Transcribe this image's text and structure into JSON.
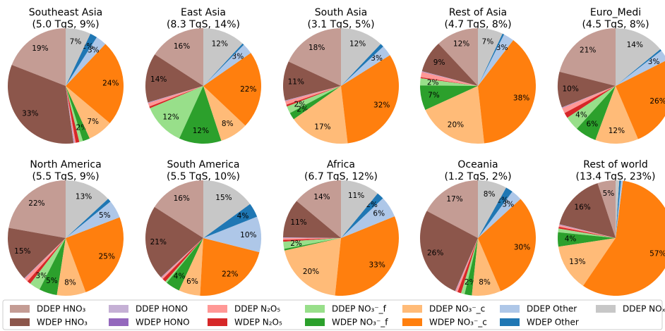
{
  "chart_data": [
    {
      "type": "pie",
      "title": "Southeast Asia",
      "subtitle": "(5.0 TgS, 9%)",
      "values": [
        19,
        33,
        0.2,
        0.1,
        0.3,
        1,
        1,
        2,
        7,
        24,
        3,
        2,
        7
      ],
      "value_labels": [
        "19%",
        "33%",
        null,
        null,
        null,
        null,
        null,
        "2%",
        "7%",
        "24%",
        "3%",
        "2%",
        "7%"
      ]
    },
    {
      "type": "pie",
      "title": "East Asia",
      "subtitle": "(8.3 TgS, 14%)",
      "values": [
        16,
        14,
        0.1,
        0.1,
        1,
        0.5,
        12,
        12,
        8,
        22,
        3,
        0.5,
        12
      ],
      "value_labels": [
        "16%",
        "14%",
        null,
        null,
        null,
        null,
        "12%",
        "12%",
        "8%",
        "22%",
        "3%",
        null,
        "12%"
      ]
    },
    {
      "type": "pie",
      "title": "South Asia",
      "subtitle": "(3.1 TgS, 5%)",
      "values": [
        18,
        11,
        0.1,
        0.1,
        1,
        0.5,
        2,
        2,
        17,
        32,
        3,
        1,
        12
      ],
      "value_labels": [
        "18%",
        "11%",
        null,
        null,
        null,
        null,
        "2%",
        "2%",
        "17%",
        "32%",
        "3%",
        null,
        "12%"
      ]
    },
    {
      "type": "pie",
      "title": "Rest of Asia",
      "subtitle": "(4.7 TgS, 8%)",
      "values": [
        12,
        9,
        0.1,
        0.1,
        1.5,
        0.3,
        2,
        7,
        20,
        38,
        3,
        0.5,
        7
      ],
      "value_labels": [
        "12%",
        "9%",
        null,
        null,
        null,
        null,
        "2%",
        "7%",
        "20%",
        "38%",
        "3%",
        null,
        "7%"
      ]
    },
    {
      "type": "pie",
      "title": "Euro_Medi",
      "subtitle": "(4.5 TgS, 8%)",
      "values": [
        21,
        10,
        0.1,
        0.1,
        1.5,
        1.5,
        4,
        6,
        12,
        26,
        3,
        0.5,
        14
      ],
      "value_labels": [
        "21%",
        "10%",
        null,
        null,
        null,
        null,
        "4%",
        "6%",
        "12%",
        "26%",
        "3%",
        null,
        "14%"
      ]
    },
    {
      "type": "pie",
      "title": "North America",
      "subtitle": "(5.5 TgS, 9%)",
      "values": [
        22,
        15,
        0.1,
        0.1,
        1,
        1,
        3,
        5,
        8,
        25,
        5,
        1,
        13
      ],
      "value_labels": [
        "22%",
        "15%",
        null,
        null,
        null,
        null,
        "3%",
        "5%",
        "8%",
        "25%",
        "5%",
        null,
        "13%"
      ]
    },
    {
      "type": "pie",
      "title": "South America",
      "subtitle": "(5.5 TgS, 10%)",
      "values": [
        16,
        21,
        0.1,
        0.1,
        0.5,
        1,
        0.5,
        4,
        6,
        22,
        10,
        4,
        15
      ],
      "value_labels": [
        "16%",
        "21%",
        null,
        null,
        null,
        null,
        null,
        "4%",
        "6%",
        "22%",
        "10%",
        "4%",
        "15%"
      ]
    },
    {
      "type": "pie",
      "title": "Africa",
      "subtitle": "(6.7 TgS, 12%)",
      "values": [
        14,
        11,
        0.1,
        0.1,
        0.5,
        0.5,
        2,
        0.5,
        20,
        33,
        6,
        2,
        11
      ],
      "value_labels": [
        "14%",
        "11%",
        null,
        null,
        null,
        null,
        "2%",
        null,
        "20%",
        "33%",
        "6%",
        "2%",
        "11%"
      ]
    },
    {
      "type": "pie",
      "title": "Oceania",
      "subtitle": "(1.2 TgS, 2%)",
      "values": [
        17,
        26,
        0.1,
        0.1,
        0.5,
        1,
        1,
        2,
        8,
        30,
        3,
        2,
        8
      ],
      "value_labels": [
        "17%",
        "26%",
        null,
        null,
        null,
        null,
        null,
        "2%",
        "8%",
        "30%",
        "3%",
        "2%",
        "8%"
      ]
    },
    {
      "type": "pie",
      "title": "Rest of world",
      "subtitle": "(13.4 TgS, 23%)",
      "values": [
        5,
        16,
        0.1,
        0.1,
        0.5,
        0.5,
        1,
        4,
        13,
        57,
        0.5,
        0.5,
        1
      ],
      "value_labels": [
        "5%",
        "16%",
        null,
        null,
        null,
        null,
        null,
        "4%",
        "13%",
        "57%",
        null,
        null,
        null
      ]
    }
  ],
  "legend": {
    "labels": [
      "DDEP HNO₃",
      "WDEP HNO₃",
      "DDEP HONO",
      "WDEP HONO",
      "DDEP N₂O₅",
      "WDEP N₂O₅",
      "DDEP NO₃⁻_f",
      "WDEP NO₃⁻_f",
      "DDEP NO₃⁻_c",
      "WDEP NO₃⁻_c",
      "DDEP Other",
      "WDEP Other",
      "DDEP NOₓ"
    ],
    "colors": [
      "#c49c94",
      "#8c564b",
      "#c5b0d5",
      "#9467bd",
      "#ff9896",
      "#d62728",
      "#98df8a",
      "#2ca02c",
      "#ffbb78",
      "#ff7f0e",
      "#aec7e8",
      "#1f77b4",
      "#c7c7c7"
    ]
  }
}
